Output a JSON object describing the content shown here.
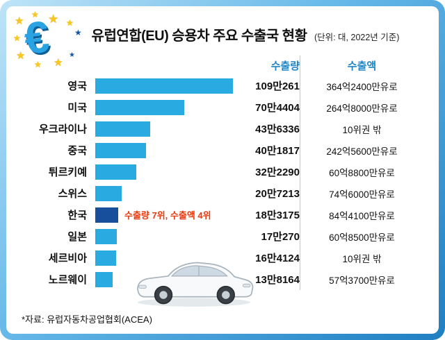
{
  "header": {
    "title": "유럽연합(EU) 승용차 주요 수출국 현황",
    "unit_note": "(단위: 대, 2022년 기준)"
  },
  "columns": {
    "volume": "수출량",
    "amount": "수출액"
  },
  "chart_data": {
    "type": "bar",
    "orientation": "horizontal",
    "title": "유럽연합(EU) 승용차 주요 수출국 현황",
    "unit_note": "(단위: 대, 2022년 기준)",
    "categories": [
      "영국",
      "미국",
      "우크라이나",
      "중국",
      "튀르키예",
      "스위스",
      "한국",
      "일본",
      "세르비아",
      "노르웨이"
    ],
    "series": [
      {
        "name": "수출량",
        "values": [
          1090261,
          704404,
          436336,
          401817,
          322290,
          207213,
          183175,
          170270,
          164124,
          138164
        ]
      }
    ],
    "volume_labels": [
      "109만261",
      "70만4404",
      "43만6336",
      "40만1817",
      "32만2290",
      "20만7213",
      "18만3175",
      "17만270",
      "16만4124",
      "13만8164"
    ],
    "amount_labels": [
      "364억2400만유로",
      "264억8000만유로",
      "10위권 밖",
      "242억5600만유로",
      "60억8800만유로",
      "74억6000만유로",
      "84억4100만유로",
      "60억8500만유로",
      "10위권 밖",
      "57억3700만유로"
    ],
    "highlight_index": 6,
    "annotation": {
      "text": "수출량 7위, 수출액 4위",
      "applies_to": "한국"
    },
    "colors": {
      "bar": "#29abe2",
      "highlight_bar": "#174f9c",
      "column_header_text": "#1d86c8",
      "annotation_text": "#e8380d",
      "frame_gradient_start": "#bfe4f8",
      "frame_gradient_end": "#1f7fc2"
    },
    "xlim": [
      0,
      1090261
    ],
    "grid": false,
    "legend_position": "none"
  },
  "decorations": {
    "logo": "eu-euro-stars-logo",
    "illustration": "sedan-car-illustration"
  },
  "footer": {
    "source": "*자료: 유럽자동차공업협회(ACEA)"
  }
}
